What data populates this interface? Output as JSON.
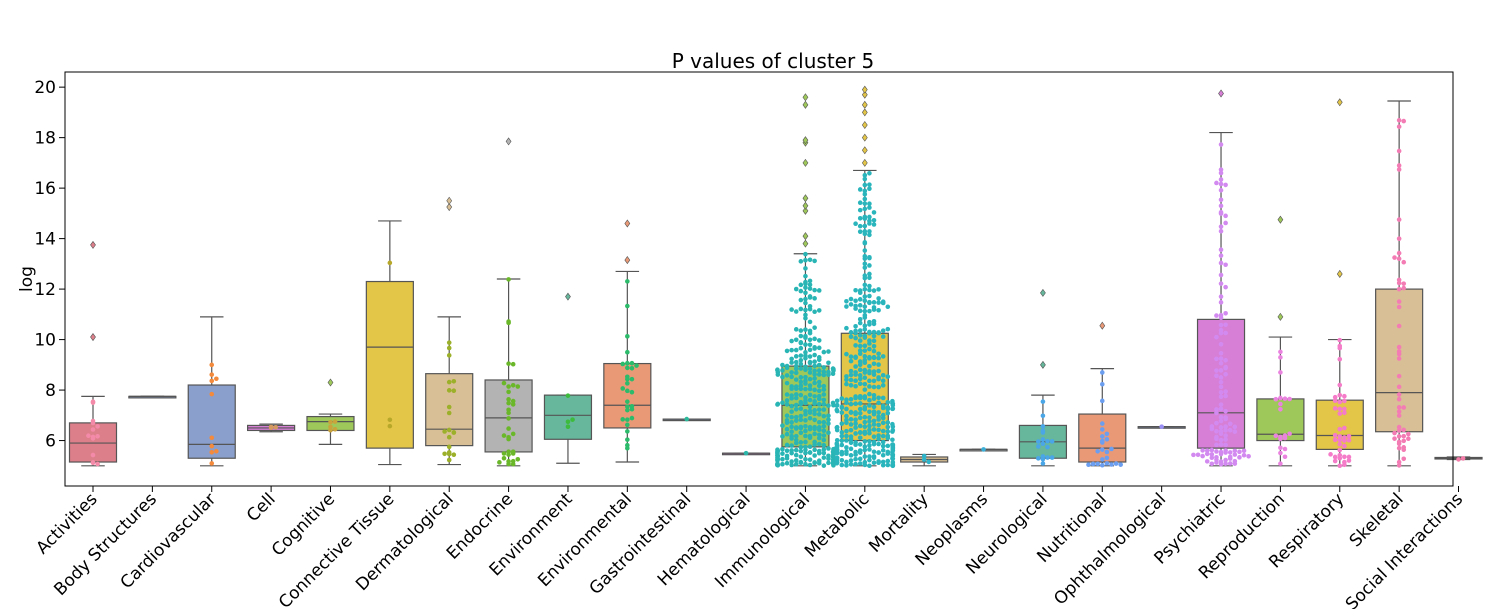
{
  "chart_data": {
    "type": "box",
    "title": "P values of cluster 5",
    "xlabel": "",
    "ylabel": "log",
    "ylim": [
      4.2,
      20.6
    ],
    "yticks": [
      6,
      8,
      10,
      12,
      14,
      16,
      18,
      20
    ],
    "grid": false,
    "categories": [
      {
        "name": "Activities",
        "color": "#dd7f8a",
        "q1": 5.15,
        "median": 5.9,
        "q3": 6.7,
        "wlo": 5.0,
        "whi": 7.75,
        "outliers": [
          10.1,
          13.75
        ]
      },
      {
        "name": "Body Structures",
        "color": "#8a9fcc",
        "q1": 7.75,
        "median": 7.75,
        "q3": 7.75,
        "wlo": 7.75,
        "whi": 7.75,
        "outliers": []
      },
      {
        "name": "Cardiovascular",
        "color": "#8a9fcc",
        "q1": 5.3,
        "median": 5.85,
        "q3": 8.2,
        "wlo": 5.0,
        "whi": 10.9,
        "outliers": []
      },
      {
        "name": "Cell",
        "color": "#d77fd6",
        "q1": 6.4,
        "median": 6.5,
        "q3": 6.6,
        "wlo": 6.35,
        "whi": 6.65,
        "outliers": []
      },
      {
        "name": "Cognitive",
        "color": "#9fc85a",
        "q1": 6.4,
        "median": 6.75,
        "q3": 6.95,
        "wlo": 5.85,
        "whi": 7.05,
        "outliers": [
          8.3
        ]
      },
      {
        "name": "Connective Tissue",
        "color": "#e3c547",
        "q1": 5.7,
        "median": 9.7,
        "q3": 12.3,
        "wlo": 5.05,
        "whi": 14.7,
        "outliers": []
      },
      {
        "name": "Dermatological",
        "color": "#d9bf95",
        "q1": 5.8,
        "median": 6.45,
        "q3": 8.65,
        "wlo": 5.05,
        "whi": 10.9,
        "outliers": [
          15.25,
          15.5
        ]
      },
      {
        "name": "Endocrine",
        "color": "#b3b3b3",
        "q1": 5.55,
        "median": 6.9,
        "q3": 8.4,
        "wlo": 5.0,
        "whi": 12.4,
        "outliers": [
          17.85
        ]
      },
      {
        "name": "Environment",
        "color": "#66b79b",
        "q1": 6.05,
        "median": 7.0,
        "q3": 7.8,
        "wlo": 5.1,
        "whi": 7.8,
        "outliers": [
          11.7
        ]
      },
      {
        "name": "Environmental",
        "color": "#ea9977",
        "q1": 6.5,
        "median": 7.4,
        "q3": 9.05,
        "wlo": 5.15,
        "whi": 12.7,
        "outliers": [
          13.15,
          14.6
        ]
      },
      {
        "name": "Gastrointestinal",
        "color": "#8a9fcc",
        "q1": 6.85,
        "median": 6.85,
        "q3": 6.85,
        "wlo": 6.85,
        "whi": 6.85,
        "outliers": []
      },
      {
        "name": "Hematological",
        "color": "#d77fd6",
        "q1": 5.5,
        "median": 5.5,
        "q3": 5.5,
        "wlo": 5.5,
        "whi": 5.5,
        "outliers": []
      },
      {
        "name": "Immunological",
        "color": "#9fc85a",
        "q1": 5.75,
        "median": 7.4,
        "q3": 8.95,
        "wlo": 5.0,
        "whi": 13.4,
        "outliers": [
          13.8,
          14.1,
          15.1,
          15.3,
          15.6,
          17.0,
          17.8,
          17.9,
          19.3,
          19.6
        ]
      },
      {
        "name": "Metabolic",
        "color": "#e3c547",
        "q1": 6.0,
        "median": 7.45,
        "q3": 10.25,
        "wlo": 5.0,
        "whi": 16.7,
        "outliers": [
          17.0,
          17.5,
          18.0,
          18.5,
          19.0,
          19.3,
          19.7,
          19.9
        ]
      },
      {
        "name": "Mortality",
        "color": "#d9bf95",
        "q1": 5.15,
        "median": 5.25,
        "q3": 5.35,
        "wlo": 5.0,
        "whi": 5.45,
        "outliers": []
      },
      {
        "name": "Neoplasms",
        "color": "#b3b3b3",
        "q1": 5.65,
        "median": 5.65,
        "q3": 5.65,
        "wlo": 5.65,
        "whi": 5.65,
        "outliers": []
      },
      {
        "name": "Neurological",
        "color": "#66b79b",
        "q1": 5.3,
        "median": 5.95,
        "q3": 6.6,
        "wlo": 5.0,
        "whi": 7.8,
        "outliers": [
          9.0,
          11.85
        ]
      },
      {
        "name": "Nutritional",
        "color": "#ea9977",
        "q1": 5.15,
        "median": 5.7,
        "q3": 7.05,
        "wlo": 5.0,
        "whi": 8.85,
        "outliers": [
          10.55
        ]
      },
      {
        "name": "Ophthalmological",
        "color": "#8a9fcc",
        "q1": 6.55,
        "median": 6.55,
        "q3": 6.55,
        "wlo": 6.55,
        "whi": 6.55,
        "outliers": []
      },
      {
        "name": "Psychiatric",
        "color": "#d77fd6",
        "q1": 5.7,
        "median": 7.1,
        "q3": 10.8,
        "wlo": 5.0,
        "whi": 18.2,
        "outliers": [
          19.75
        ]
      },
      {
        "name": "Reproduction",
        "color": "#9fc85a",
        "q1": 6.0,
        "median": 6.25,
        "q3": 7.65,
        "wlo": 5.0,
        "whi": 10.1,
        "outliers": [
          10.9,
          14.75
        ]
      },
      {
        "name": "Respiratory",
        "color": "#e3c547",
        "q1": 5.65,
        "median": 6.2,
        "q3": 7.6,
        "wlo": 5.0,
        "whi": 10.0,
        "outliers": [
          12.6,
          19.4
        ]
      },
      {
        "name": "Skeletal",
        "color": "#d9bf95",
        "q1": 6.35,
        "median": 7.9,
        "q3": 12.0,
        "wlo": 5.0,
        "whi": 19.45,
        "outliers": []
      },
      {
        "name": "Social Interactions",
        "color": "#b3b3b3",
        "q1": 5.28,
        "median": 5.3,
        "q3": 5.33,
        "wlo": 5.25,
        "whi": 5.35,
        "outliers": []
      }
    ],
    "swarm": [
      {
        "category": "Activities",
        "color": "#f48aa9",
        "count": 14
      },
      {
        "category": "Cardiovascular",
        "color": "#f48a3c",
        "count": 10
      },
      {
        "category": "Cell",
        "color": "#d49a60",
        "count": 3
      },
      {
        "category": "Cognitive",
        "color": "#c9a33c",
        "count": 5
      },
      {
        "category": "Connective Tissue",
        "color": "#b8a82a",
        "count": 3
      },
      {
        "category": "Dermatological",
        "color": "#9cb02a",
        "count": 20
      },
      {
        "category": "Endocrine",
        "color": "#6ab82a",
        "count": 34
      },
      {
        "category": "Environment",
        "color": "#3dbb3d",
        "count": 4
      },
      {
        "category": "Environmental",
        "color": "#2cbb6a",
        "count": 30
      },
      {
        "category": "Gastrointestinal",
        "color": "#2cb89a",
        "count": 1
      },
      {
        "category": "Hematological",
        "color": "#2ab6a8",
        "count": 1
      },
      {
        "category": "Immunological",
        "color": "#2ab5b5",
        "count": 330
      },
      {
        "category": "Metabolic",
        "color": "#2ab5bc",
        "count": 400
      },
      {
        "category": "Mortality",
        "color": "#2cb3c9",
        "count": 3
      },
      {
        "category": "Neoplasms",
        "color": "#3aaed6",
        "count": 1
      },
      {
        "category": "Neurological",
        "color": "#4aa6e6",
        "count": 18
      },
      {
        "category": "Nutritional",
        "color": "#6c9ef0",
        "count": 24
      },
      {
        "category": "Ophthalmological",
        "color": "#9a8ff5",
        "count": 1
      },
      {
        "category": "Psychiatric",
        "color": "#d38af0",
        "count": 120
      },
      {
        "category": "Reproduction",
        "color": "#ea82e0",
        "count": 20
      },
      {
        "category": "Respiratory",
        "color": "#f47cc8",
        "count": 40
      },
      {
        "category": "Skeletal",
        "color": "#f47cb5",
        "count": 50
      },
      {
        "category": "Social Interactions",
        "color": "#f47ca8",
        "count": 2
      }
    ]
  }
}
